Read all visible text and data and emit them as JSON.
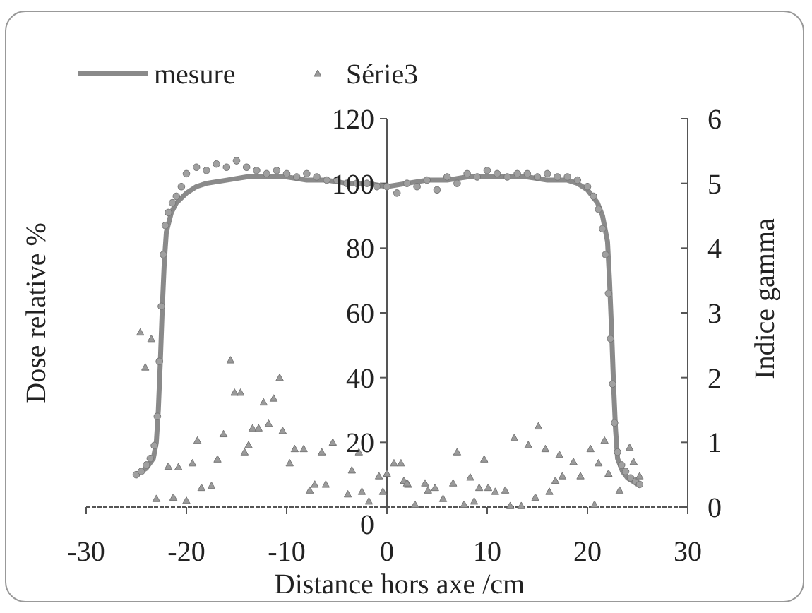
{
  "chart_data": {
    "type": "scatter",
    "xlabel": "Distance hors axe /cm",
    "ylabel": "Dose relative %",
    "y2label": "Indice gamma",
    "xlim": [
      -30,
      30
    ],
    "xticks": [
      -30,
      -20,
      -10,
      0,
      10,
      20,
      30
    ],
    "ylim": [
      0,
      120
    ],
    "yticks": [
      0,
      20,
      40,
      60,
      80,
      100,
      120
    ],
    "y2lim": [
      0,
      6
    ],
    "y2ticks": [
      0,
      1,
      2,
      3,
      4,
      5,
      6
    ],
    "legend": "top",
    "grid": false,
    "series": [
      {
        "type": "scatter",
        "marker": "circle",
        "color": "#a0a0a0",
        "x": [
          -25,
          -24.5,
          -24,
          -23.6,
          -23.2,
          -22.9,
          -22.7,
          -22.5,
          -22.3,
          -22.1,
          -21.8,
          -21.4,
          -21,
          -20.5,
          -20,
          -19,
          -18,
          -17,
          -16,
          -15,
          -14,
          -13,
          -12,
          -11,
          -10,
          -9,
          -8,
          -7,
          -6,
          -5,
          -4,
          -3,
          -2,
          -1,
          0,
          1,
          2,
          3,
          4,
          5,
          6,
          7,
          8,
          9,
          10,
          11,
          12,
          13,
          14,
          15,
          16,
          17,
          18,
          19,
          20,
          20.6,
          21.1,
          21.5,
          21.8,
          22.1,
          22.3,
          22.5,
          22.7,
          23,
          23.4,
          23.8,
          24.3,
          24.8,
          25.2
        ],
        "values": [
          10,
          11,
          13,
          15,
          19,
          28,
          45,
          62,
          78,
          87,
          91,
          94,
          96,
          99,
          103,
          105,
          104,
          106,
          105,
          107,
          105,
          104,
          103,
          104,
          103,
          102,
          103,
          102,
          101,
          101,
          100,
          100,
          100,
          99,
          99,
          97,
          100,
          99,
          101,
          98,
          102,
          100,
          103,
          102,
          104,
          103,
          102,
          103,
          103,
          102,
          103,
          102,
          102,
          101,
          99,
          96,
          92,
          86,
          78,
          66,
          52,
          38,
          26,
          17,
          13,
          11,
          9,
          8,
          7
        ]
      },
      {
        "type": "line",
        "name": "mesure",
        "marker": "none",
        "line_style": "solid",
        "color": "#8a8a8a",
        "x": [
          -25,
          -24,
          -23.3,
          -23,
          -22.8,
          -22.6,
          -22.4,
          -22.2,
          -22,
          -21.5,
          -21,
          -20,
          -19,
          -18,
          -16,
          -14,
          -12,
          -10,
          -8,
          -6,
          -4,
          -2,
          0,
          2,
          4,
          6,
          8,
          10,
          12,
          14,
          16,
          18,
          19,
          20,
          21,
          21.5,
          22,
          22.2,
          22.4,
          22.6,
          22.8,
          23,
          23.5,
          24,
          25
        ],
        "values": [
          10,
          12,
          15,
          20,
          30,
          45,
          62,
          76,
          85,
          91,
          94,
          97,
          99,
          100,
          101,
          102,
          102,
          102,
          101,
          101,
          100,
          100,
          99,
          100,
          101,
          101,
          102,
          102,
          102,
          102,
          101,
          101,
          100,
          98,
          94,
          90,
          82,
          70,
          55,
          38,
          24,
          15,
          11,
          9,
          7
        ]
      },
      {
        "type": "scatter",
        "name": "Série3",
        "marker": "triangle",
        "axis": "y2",
        "color": "#9a9a9a",
        "x": [
          -24.6,
          -23.5,
          -24.1,
          -23,
          -21.3,
          -20,
          -21.8,
          -20.8,
          -19.4,
          -18.9,
          -18.5,
          -17.5,
          -16.9,
          -16.3,
          -15.6,
          -15.2,
          -14.6,
          -14.2,
          -13.8,
          -13.4,
          -12.8,
          -12.3,
          -11.3,
          -10.7,
          -11.8,
          -10.4,
          -9.7,
          -9.2,
          -8.3,
          -7.7,
          -7.2,
          -6.1,
          -6.5,
          -5.4,
          -3.9,
          -3.5,
          -2.8,
          -2.5,
          -1.8,
          -0.8,
          -0.4,
          0,
          0.7,
          1.4,
          1.7,
          2.8,
          2.1,
          2,
          4.1,
          3.8,
          4.8,
          5.6,
          6.6,
          7,
          7.7,
          8.3,
          8.7,
          9.2,
          9.7,
          10.1,
          10.8,
          11.8,
          12.3,
          13.4,
          12.7,
          14.1,
          15.1,
          15.8,
          17.2,
          14.8,
          16.2,
          16.8,
          17.5,
          18.6,
          19.3,
          20.3,
          20.7,
          21.1,
          21.7,
          22.1,
          23.2,
          24.2,
          24.6,
          25.2
        ],
        "values": [
          2.7,
          2.6,
          2.16,
          0.13,
          0.15,
          0.1,
          0.63,
          0.62,
          0.68,
          1.03,
          0.3,
          0.33,
          0.74,
          1.13,
          2.27,
          1.77,
          1.77,
          0.85,
          0.96,
          1.22,
          1.22,
          1.62,
          1.68,
          2,
          1.29,
          1.18,
          0.68,
          0.9,
          0.9,
          0.26,
          0.35,
          0.35,
          0.85,
          1,
          0.2,
          0.57,
          0.85,
          0.24,
          0.09,
          0.48,
          0.24,
          0.52,
          0.68,
          0.68,
          0.41,
          0.04,
          0.35,
          0.37,
          0.26,
          0.37,
          0.3,
          0.13,
          0.37,
          0.85,
          0.04,
          0.46,
          0.09,
          0.3,
          0.74,
          0.3,
          0.24,
          0.26,
          0.02,
          0.02,
          1.07,
          0.96,
          1.25,
          0.9,
          0.81,
          0.15,
          0.24,
          0.41,
          0.48,
          0.7,
          0.48,
          0.9,
          0.04,
          0.68,
          1.03,
          0.52,
          0.26,
          0.92,
          0.7,
          0.48
        ]
      }
    ]
  }
}
